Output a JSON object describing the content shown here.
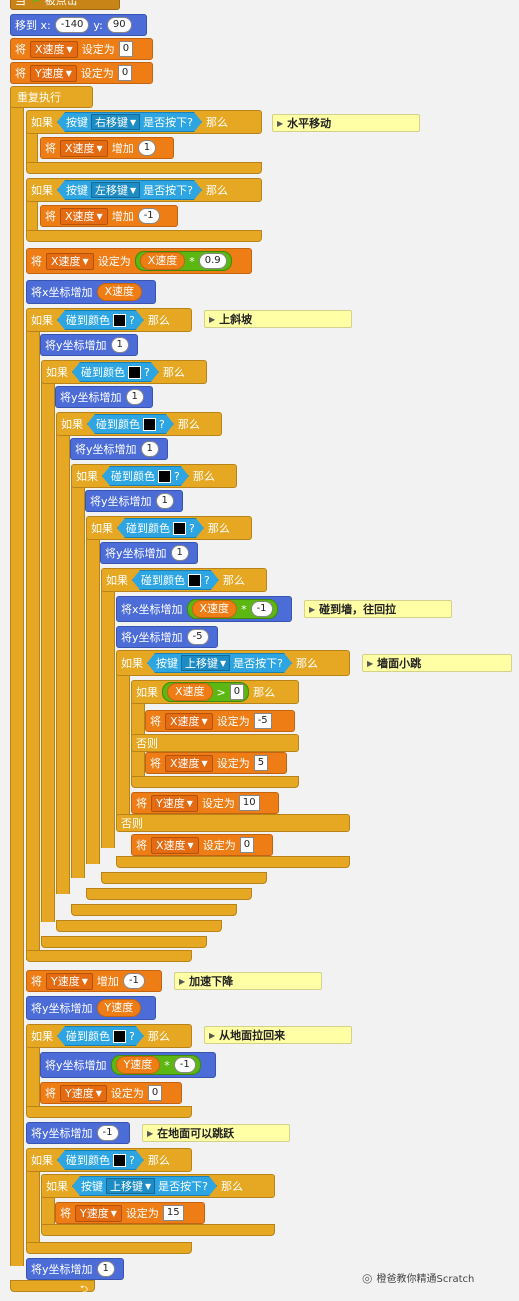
{
  "hat": {
    "label": "当",
    "flag": "green-flag-icon",
    "suffix": "被点击"
  },
  "move_to": {
    "label": "移到 x:",
    "x": "-140",
    "y_label": "y:",
    "y": "90"
  },
  "init_x": {
    "set": "将",
    "var": "X速度",
    "to": "设定为",
    "value": "0"
  },
  "init_y": {
    "set": "将",
    "var": "Y速度",
    "to": "设定为",
    "value": "0"
  },
  "forever": "重复执行",
  "if_right": {
    "if": "如果",
    "key_label": "按键",
    "key": "右移键",
    "pressed": "是否按下?",
    "then": "那么",
    "comment": "水平移动",
    "change": {
      "set": "将",
      "var": "X速度",
      "action": "增加",
      "value": "1"
    }
  },
  "if_left": {
    "if": "如果",
    "key_label": "按键",
    "key": "左移键",
    "pressed": "是否按下?",
    "then": "那么",
    "change": {
      "set": "将",
      "var": "X速度",
      "action": "增加",
      "value": "-1"
    }
  },
  "friction": {
    "set": "将",
    "var": "X速度",
    "to": "设定为",
    "reporter": "X速度",
    "op": "*",
    "value": "0.9"
  },
  "move_x": {
    "label": "将x坐标增加",
    "reporter": "X速度"
  },
  "slope": {
    "if": "如果",
    "touch": "碰到颜色",
    "q": "?",
    "then": "那么",
    "comment": "上斜坡",
    "change_y": "将y坐标增加",
    "one": "1"
  },
  "wall": {
    "label": "将x坐标增加",
    "reporter": "X速度",
    "op": "*",
    "value": "-1",
    "comment": "碰到墙，往回拉",
    "change_y": "将y坐标增加",
    "minus5": "-5"
  },
  "wall_jump": {
    "if": "如果",
    "key_label": "按键",
    "key": "上移键",
    "pressed": "是否按下?",
    "then": "那么",
    "comment": "墙面小跳",
    "inner_if": "如果",
    "cond_var": "X速度",
    "gt": ">",
    "cond_val": "0",
    "then2": "那么",
    "set_a": {
      "set": "将",
      "var": "X速度",
      "to": "设定为",
      "value": "-5"
    },
    "else": "否则",
    "set_b": {
      "set": "将",
      "var": "X速度",
      "to": "设定为",
      "value": "5"
    },
    "set_y": {
      "set": "将",
      "var": "Y速度",
      "to": "设定为",
      "value": "10"
    },
    "else2": "否则",
    "set_c": {
      "set": "将",
      "var": "X速度",
      "to": "设定为",
      "value": "0"
    }
  },
  "gravity": {
    "set": "将",
    "var": "Y速度",
    "action": "增加",
    "value": "-1",
    "comment": "加速下降"
  },
  "move_y": {
    "label": "将y坐标增加",
    "reporter": "Y速度"
  },
  "ground": {
    "if": "如果",
    "touch": "碰到颜色",
    "q": "?",
    "then": "那么",
    "comment": "从地面拉回来",
    "change_y": "将y坐标增加",
    "reporter": "Y速度",
    "op": "*",
    "value": "-1",
    "set": "将",
    "var": "Y速度",
    "to": "设定为",
    "zero": "0"
  },
  "probe": {
    "label": "将y坐标增加",
    "value": "-1",
    "comment": "在地面可以跳跃"
  },
  "jump": {
    "if": "如果",
    "touch": "碰到颜色",
    "q": "?",
    "then": "那么",
    "if2": "如果",
    "key_label": "按键",
    "key": "上移键",
    "pressed": "是否按下?",
    "then2": "那么",
    "set": "将",
    "var": "Y速度",
    "to": "设定为",
    "value": "15"
  },
  "restore": {
    "label": "将y坐标增加",
    "value": "1"
  },
  "watermark": "橙爸教你精通Scratch",
  "colors": {
    "control": "#e6a822",
    "motion": "#4c6cd8",
    "data": "#ee7d16",
    "sensing": "#2ca5e2",
    "operator": "#5cb712",
    "comment": "#ffffa5"
  }
}
